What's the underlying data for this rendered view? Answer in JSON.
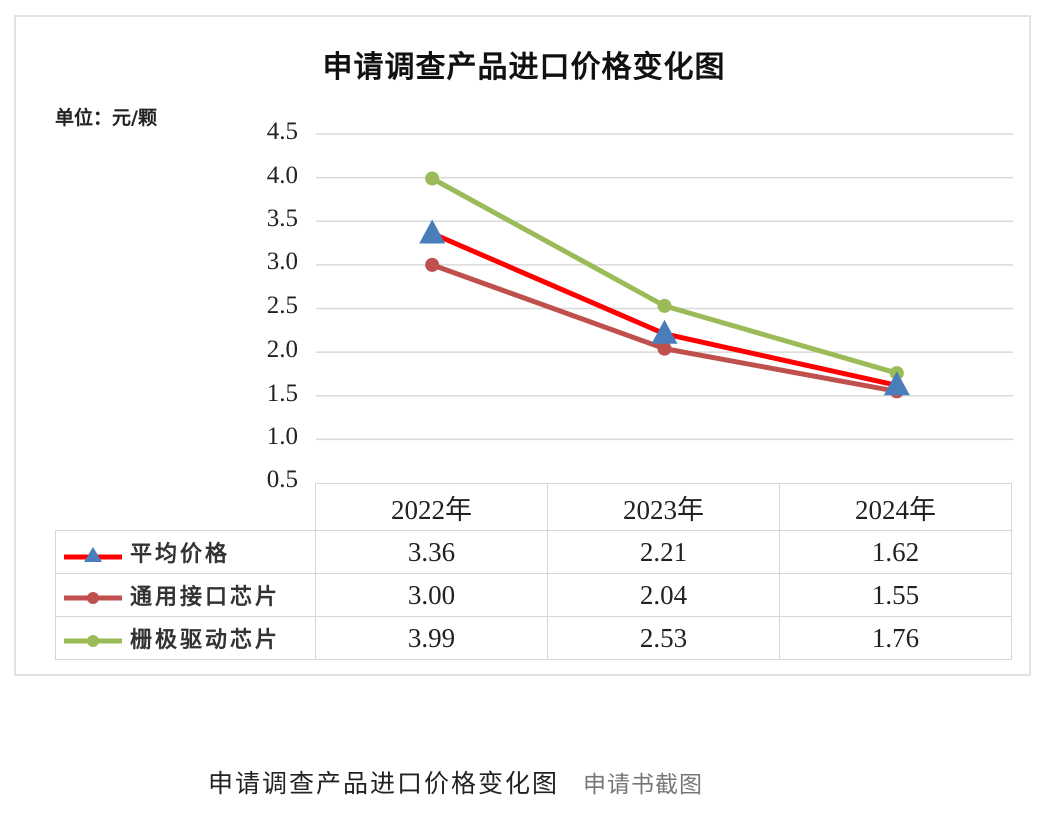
{
  "chart_data": {
    "type": "line",
    "title": "申请调查产品进口价格变化图",
    "ylabel": "单位：元/颗",
    "xlabel": "",
    "categories": [
      "2022年",
      "2023年",
      "2024年"
    ],
    "yticks": [
      "4.5",
      "4.0",
      "3.5",
      "3.0",
      "2.5",
      "2.0",
      "1.5",
      "1.0",
      "0.5"
    ],
    "ylim": [
      0.5,
      4.5
    ],
    "grid": true,
    "legend_position": "data-table",
    "series": [
      {
        "name": "平均价格",
        "values": [
          3.36,
          2.21,
          1.62
        ],
        "display": [
          "3.36",
          "2.21",
          "1.62"
        ],
        "color": "#ff0000",
        "marker": "triangle",
        "marker_color": "#4a7ebb"
      },
      {
        "name": "通用接口芯片",
        "values": [
          3.0,
          2.04,
          1.55
        ],
        "display": [
          "3.00",
          "2.04",
          "1.55"
        ],
        "color": "#c0504d",
        "marker": "circle",
        "marker_color": "#c0504d"
      },
      {
        "name": "栅极驱动芯片",
        "values": [
          3.99,
          2.53,
          1.76
        ],
        "display": [
          "3.99",
          "2.53",
          "1.76"
        ],
        "color": "#9bbb59",
        "marker": "circle",
        "marker_color": "#9bbb59"
      }
    ]
  },
  "caption": {
    "text": "申请调查产品进口价格变化图",
    "source": "申请书截图"
  }
}
